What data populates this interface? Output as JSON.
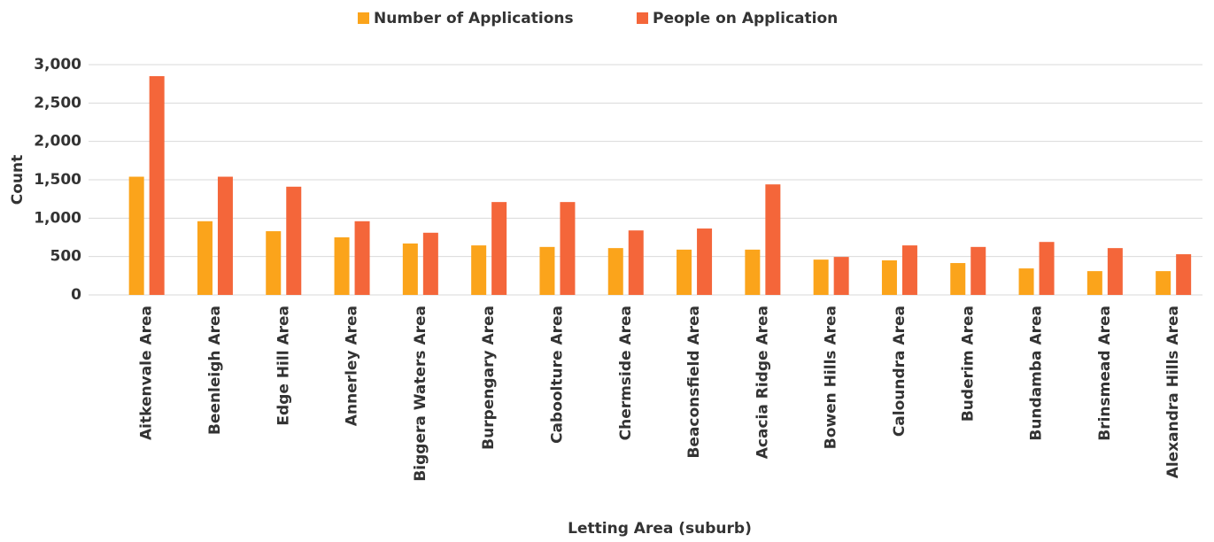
{
  "chart_data": {
    "type": "bar",
    "xlabel": "Letting Area (suburb)",
    "ylabel": "Count",
    "categories": [
      "Aitkenvale Area",
      "Beenleigh Area",
      "Edge Hill Area",
      "Annerley Area",
      "Biggera Waters Area",
      "Burpengary Area",
      "Caboolture Area",
      "Chermside Area",
      "Beaconsfield Area",
      "Acacia Ridge Area",
      "Bowen Hills Area",
      "Caloundra Area",
      "Buderim Area",
      "Bundamba Area",
      "Brinsmead Area",
      "Alexandra Hills Area"
    ],
    "series": [
      {
        "name": "Number of Applications",
        "color": "#FBA41B",
        "values": [
          1540,
          960,
          830,
          750,
          670,
          645,
          625,
          610,
          590,
          590,
          460,
          450,
          415,
          345,
          310,
          310
        ]
      },
      {
        "name": "People on Application",
        "color": "#F4663A",
        "values": [
          2850,
          1540,
          1410,
          960,
          810,
          1210,
          1210,
          840,
          865,
          1440,
          495,
          645,
          625,
          690,
          610,
          530
        ]
      }
    ],
    "ylim": [
      0,
      3000
    ],
    "yticks": [
      0,
      500,
      {
        "value": 1000,
        "label": "1,000"
      },
      {
        "value": 1500,
        "label": "1,500"
      },
      {
        "value": 2000,
        "label": "2,000"
      },
      {
        "value": 2500,
        "label": "2,500"
      },
      {
        "value": 3000,
        "label": "3,000"
      }
    ],
    "grid": true,
    "legend": "top"
  }
}
